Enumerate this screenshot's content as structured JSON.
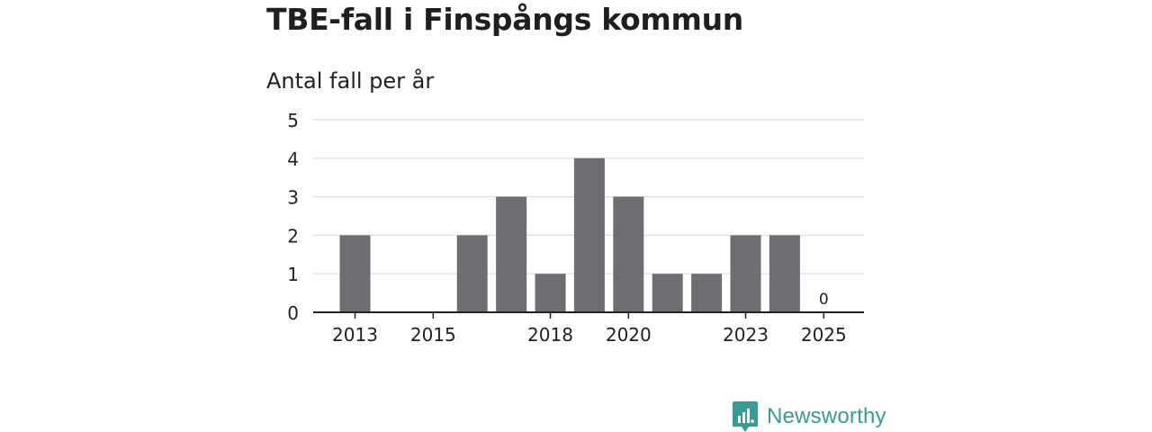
{
  "header": {
    "title": "TBE-fall i Finspångs kommun",
    "subtitle": "Antal fall per år"
  },
  "brand": {
    "name": "Newsworthy",
    "icon": "newsworthy-logo-icon",
    "color": "#3a9b94"
  },
  "chart_data": {
    "type": "bar",
    "categories": [
      "2013",
      "2014",
      "2015",
      "2016",
      "2017",
      "2018",
      "2019",
      "2020",
      "2021",
      "2022",
      "2023",
      "2024",
      "2025"
    ],
    "values": [
      2,
      0,
      0,
      2,
      3,
      1,
      4,
      3,
      1,
      1,
      2,
      2,
      0
    ],
    "x_tick_labels": [
      "2013",
      "2015",
      "2018",
      "2020",
      "2023",
      "2025"
    ],
    "y_ticks": [
      0,
      1,
      2,
      3,
      4,
      5
    ],
    "ylim": [
      0,
      5
    ],
    "value_labels": [
      {
        "category": "2025",
        "text": "0"
      }
    ],
    "grid": true,
    "bar_color": "#6e6d72",
    "grid_color": "#dddddd"
  }
}
